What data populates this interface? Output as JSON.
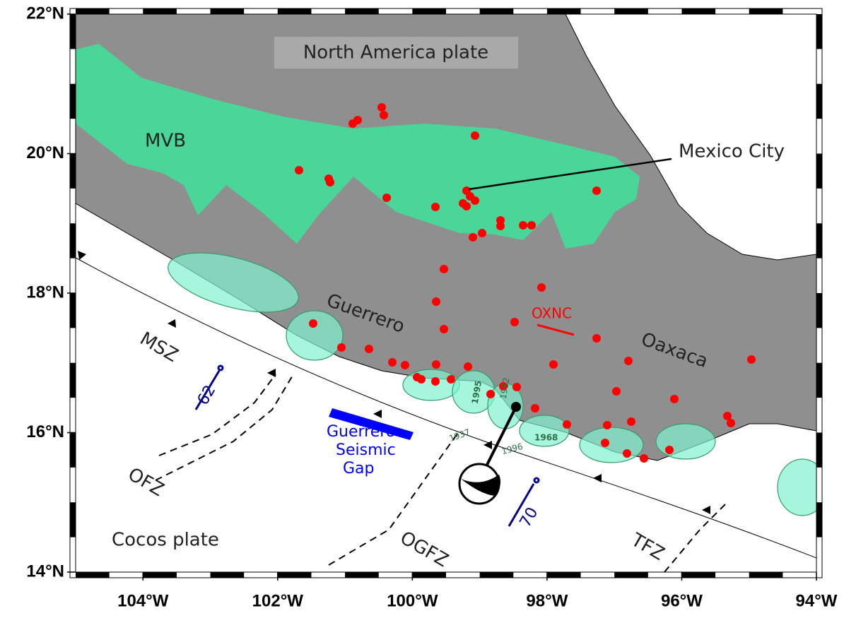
{
  "map": {
    "xlim": [
      -105,
      -94
    ],
    "ylim": [
      14,
      22
    ],
    "xticks": [
      {
        "value": -104,
        "label": "104°W"
      },
      {
        "value": -102,
        "label": "102°W"
      },
      {
        "value": -100,
        "label": "100°W"
      },
      {
        "value": -98,
        "label": "98°W"
      },
      {
        "value": -96,
        "label": "96°W"
      },
      {
        "value": -94,
        "label": "94°W"
      }
    ],
    "yticks": [
      {
        "value": 22,
        "label": "22°N"
      },
      {
        "value": 20,
        "label": "20°N"
      },
      {
        "value": 18,
        "label": "18°N"
      },
      {
        "value": 16,
        "label": "16°N"
      },
      {
        "value": 14,
        "label": "14°N"
      }
    ],
    "labels": {
      "north_america": "North America plate",
      "mvb": "MVB",
      "mexico_city": "Mexico City",
      "guerrero": "Guerrero",
      "oaxaca": "Oaxaca",
      "oxnc": "OXNC",
      "msz": "MSZ",
      "rate_west": "62",
      "rate_east": "70",
      "gap": [
        "Guerrero",
        "Seismic",
        "Gap"
      ],
      "ofz": "OFZ",
      "ogfz": "OGFZ",
      "tfz": "TFZ",
      "cocos": "Cocos plate",
      "years": [
        "1995",
        "1982",
        "1937",
        "1996",
        "1968"
      ]
    }
  }
}
